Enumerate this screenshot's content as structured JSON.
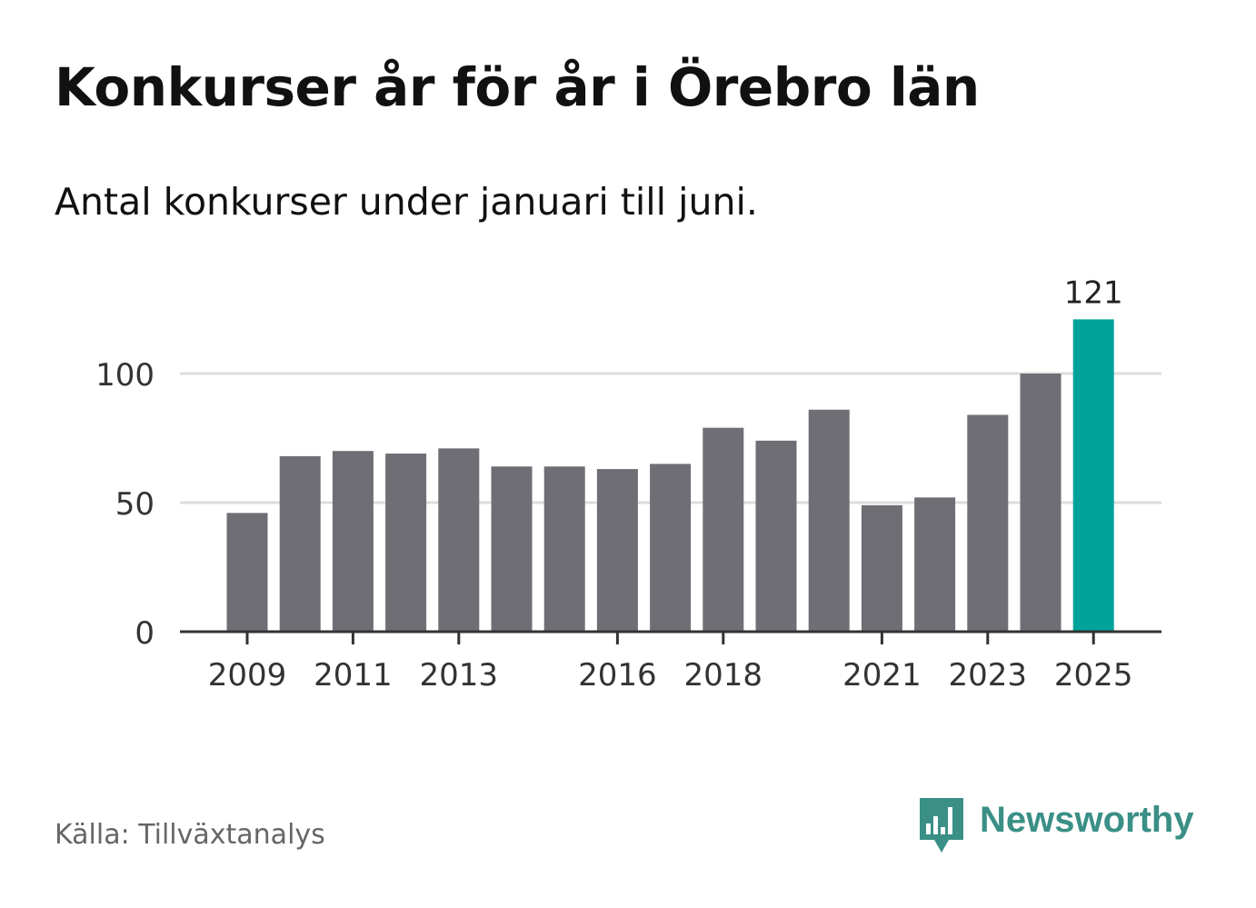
{
  "header": {
    "title": "Konkurser år för år i Örebro län",
    "subtitle": "Antal konkurser under januari till juni."
  },
  "footer": {
    "source": "Källa: Tillväxtanalys",
    "brand": "Newsworthy"
  },
  "colors": {
    "bar": "#6f6e75",
    "highlight": "#00a39a",
    "grid": "#dddddd",
    "axis": "#333333",
    "brand": "#3a8f86"
  },
  "icons": {
    "brand": "bar-chart-speech-bubble-icon"
  },
  "chart_data": {
    "type": "bar",
    "categories": [
      "2009",
      "2010",
      "2011",
      "2012",
      "2013",
      "2014",
      "2015",
      "2016",
      "2017",
      "2018",
      "2019",
      "2020",
      "2021",
      "2022",
      "2023",
      "2024",
      "2025"
    ],
    "values": [
      46,
      68,
      70,
      69,
      71,
      64,
      64,
      63,
      65,
      79,
      74,
      86,
      49,
      52,
      84,
      100,
      121
    ],
    "highlight_category": "2025",
    "tick_labels": [
      "2009",
      "2011",
      "2013",
      "2016",
      "2018",
      "2021",
      "2023",
      "2025"
    ],
    "data_labels": [
      {
        "category": "2025",
        "label": "121"
      }
    ],
    "ylim": [
      0,
      121
    ],
    "yticks": [
      0,
      50,
      100
    ],
    "title": "",
    "xlabel": "",
    "ylabel": "",
    "grid": true
  }
}
